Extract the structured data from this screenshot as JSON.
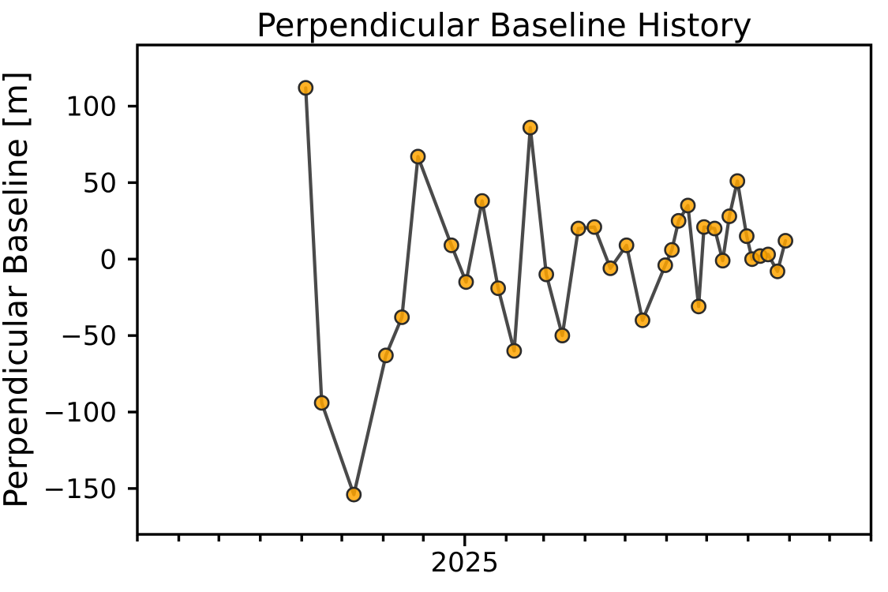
{
  "figure": {
    "background": "#ffffff"
  },
  "chart_data": {
    "type": "line",
    "title": "Perpendicular Baseline History",
    "xlabel": "",
    "ylabel": "Perpendicular Baseline [m]",
    "grid": false,
    "legend": null,
    "xlim": [
      "2024-05-01",
      "2025-11-01"
    ],
    "ylim": [
      -180,
      140
    ],
    "x_minor_tick_unit": "month",
    "x_major_tick_date": "2025-01-01",
    "x_tick_labels": [
      "2025"
    ],
    "y_ticks": [
      100,
      50,
      0,
      -50,
      -100,
      -150
    ],
    "y_tick_labels": [
      "100",
      "50",
      "0",
      "−50",
      "−100",
      "−150"
    ],
    "series": [
      {
        "name": "perpendicular baseline",
        "x_dates": [
          "2024-09-04",
          "2024-09-16",
          "2024-10-10",
          "2024-11-03",
          "2024-11-15",
          "2024-11-27",
          "2024-12-22",
          "2025-01-02",
          "2025-01-14",
          "2025-01-26",
          "2025-02-07",
          "2025-02-19",
          "2025-03-03",
          "2025-03-15",
          "2025-03-27",
          "2025-04-08",
          "2025-04-20",
          "2025-05-02",
          "2025-05-14",
          "2025-05-31",
          "2025-06-05",
          "2025-06-10",
          "2025-06-17",
          "2025-06-25",
          "2025-06-29",
          "2025-07-07",
          "2025-07-13",
          "2025-07-18",
          "2025-07-24",
          "2025-07-31",
          "2025-08-04",
          "2025-08-10",
          "2025-08-16",
          "2025-08-23",
          "2025-08-29"
        ],
        "values": [
          112,
          -94,
          -154,
          -63,
          -38,
          67,
          9,
          -15,
          38,
          -19,
          -60,
          86,
          -10,
          -50,
          20,
          21,
          -6,
          9,
          -40,
          -4,
          6,
          25,
          35,
          -31,
          21,
          20,
          -1,
          28,
          51,
          15,
          0,
          2,
          3,
          -8,
          12
        ],
        "units": "m"
      }
    ],
    "colors": {
      "line": "#4A4A4A",
      "marker_fill": "#FFA500",
      "marker_fill_opacity": 0.85,
      "marker_edge": "#2B2B2B",
      "axis": "#000000",
      "text": "#000000"
    }
  }
}
